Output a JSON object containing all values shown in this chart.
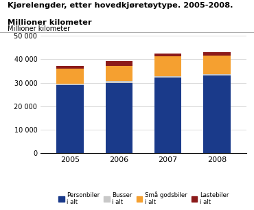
{
  "title_line1": "Kjørelengder, etter hovedkjøretøytype. 2005-2008.",
  "title_line2": "Millioner kilometer",
  "ylabel": "Millioner kilometer",
  "years": [
    2005,
    2006,
    2007,
    2008
  ],
  "series": {
    "Personbiler\ni alt": {
      "values": [
        28900,
        30000,
        32100,
        33000
      ],
      "color": "#1a3a8a"
    },
    "Busser\ni alt": {
      "values": [
        750,
        750,
        750,
        750
      ],
      "color": "#c8c8c8"
    },
    "Små godsbiler\ni alt": {
      "values": [
        6400,
        6400,
        8400,
        7800
      ],
      "color": "#f5a030"
    },
    "Lastebiler\ni alt": {
      "values": [
        1150,
        2050,
        1050,
        1550
      ],
      "color": "#8b1a1a"
    }
  },
  "ylim": [
    0,
    50000
  ],
  "yticks": [
    0,
    10000,
    20000,
    30000,
    40000,
    50000
  ],
  "ytick_labels": [
    "0",
    "10 000",
    "20 000",
    "30 000",
    "40 000",
    "50 000"
  ],
  "bar_width": 0.55,
  "background_color": "#ffffff",
  "grid_color": "#cccccc"
}
